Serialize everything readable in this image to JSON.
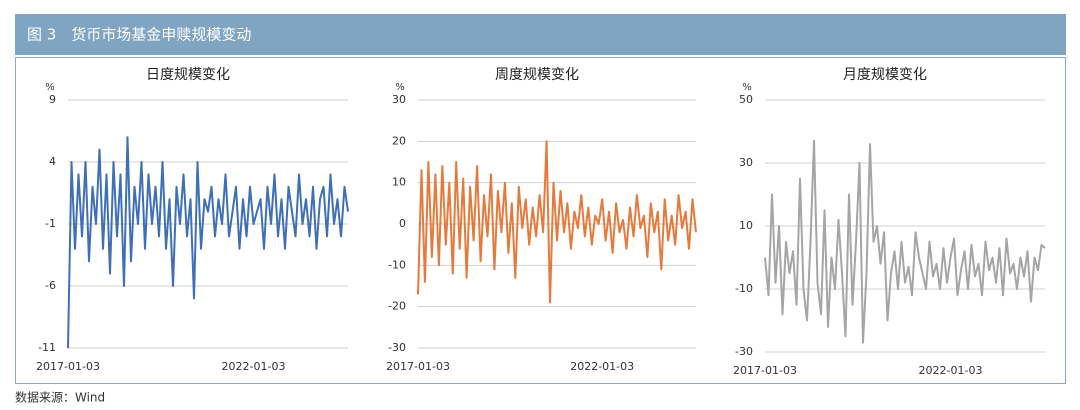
{
  "header": {
    "title": "图 3　货币市场基金申赎规模变动"
  },
  "footer": {
    "source": "数据来源：Wind"
  },
  "chart_data": [
    {
      "type": "line",
      "title": "日度规模变化",
      "unit": "%",
      "categories": [
        "2017-01-03",
        null,
        null,
        null,
        null,
        null,
        null,
        null,
        null,
        null,
        null,
        null,
        null,
        null,
        null,
        null,
        null,
        null,
        null,
        null,
        null,
        null,
        null,
        null,
        null,
        null,
        null,
        null,
        null,
        null,
        null,
        null,
        null,
        null,
        null,
        null,
        null,
        null,
        null,
        null,
        null,
        null,
        null,
        null,
        null,
        null,
        null,
        null,
        null,
        null,
        null,
        null,
        null,
        "2022-01-03",
        null,
        null,
        null,
        null,
        null,
        null,
        null,
        null,
        null,
        null,
        null,
        null,
        null,
        null,
        null,
        null,
        null,
        null,
        null,
        null,
        null,
        null,
        null,
        null,
        null,
        null,
        null
      ],
      "series": [
        {
          "name": "日度规模变化",
          "color": "#3f6fb6",
          "values": [
            -11,
            4,
            -3,
            3,
            -2,
            4,
            -4,
            2,
            -1,
            5,
            -3,
            3,
            -5,
            4,
            -2,
            3,
            -6,
            6,
            -4,
            2,
            -1,
            4,
            -3,
            3,
            -1,
            2,
            -2,
            4,
            -3,
            1,
            -6,
            2,
            -1,
            3,
            -2,
            1,
            -7,
            4,
            -3,
            1,
            0,
            2,
            -2,
            1,
            -1,
            3,
            -2,
            0,
            2,
            -3,
            1,
            -2,
            2,
            -1,
            0,
            1,
            -3,
            2,
            -1,
            3,
            -2,
            1,
            -3,
            2,
            0,
            -2,
            3,
            -1,
            1,
            -2,
            2,
            -3,
            1,
            2,
            -2,
            3,
            -1,
            1,
            -2,
            2,
            0
          ]
        }
      ],
      "ylim": [
        -11,
        9
      ],
      "yticks": [
        -11,
        -6,
        -1,
        4,
        9
      ],
      "grid": true
    },
    {
      "type": "line",
      "title": "周度规模变化",
      "unit": "%",
      "categories": [
        "2017-01-03",
        null,
        null,
        null,
        null,
        null,
        null,
        null,
        null,
        null,
        null,
        null,
        null,
        null,
        null,
        null,
        null,
        null,
        null,
        null,
        null,
        null,
        null,
        null,
        null,
        null,
        null,
        null,
        null,
        null,
        null,
        null,
        null,
        null,
        null,
        null,
        null,
        null,
        null,
        null,
        null,
        null,
        null,
        null,
        null,
        null,
        null,
        null,
        null,
        null,
        null,
        null,
        null,
        "2022-01-03",
        null,
        null,
        null,
        null,
        null,
        null,
        null,
        null,
        null,
        null,
        null,
        null,
        null,
        null,
        null,
        null,
        null,
        null,
        null,
        null,
        null,
        null,
        null,
        null,
        null,
        null,
        null
      ],
      "series": [
        {
          "name": "周度规模变化",
          "color": "#e67a3c",
          "values": [
            -17,
            13,
            -14,
            15,
            -8,
            12,
            -10,
            14,
            -5,
            10,
            -12,
            15,
            -6,
            11,
            -13,
            9,
            -4,
            14,
            -9,
            7,
            -3,
            12,
            -11,
            8,
            -2,
            10,
            -7,
            5,
            -13,
            9,
            -1,
            6,
            -5,
            4,
            -3,
            7,
            -2,
            20,
            -19,
            10,
            -4,
            8,
            -2,
            5,
            -6,
            3,
            -1,
            7,
            -3,
            4,
            -5,
            2,
            0,
            6,
            -4,
            3,
            -7,
            5,
            -2,
            1,
            -6,
            4,
            -3,
            7,
            -1,
            2,
            -8,
            5,
            -2,
            3,
            -11,
            6,
            -4,
            2,
            -5,
            7,
            -1,
            3,
            -6,
            6,
            -2
          ]
        }
      ],
      "ylim": [
        -30,
        30
      ],
      "yticks": [
        -30,
        -20,
        -10,
        0,
        10,
        20,
        30
      ],
      "grid": true
    },
    {
      "type": "line",
      "title": "月度规模变化",
      "unit": "%",
      "categories": [
        "2017-01-03",
        null,
        null,
        null,
        null,
        null,
        null,
        null,
        null,
        null,
        null,
        null,
        null,
        null,
        null,
        null,
        null,
        null,
        null,
        null,
        null,
        null,
        null,
        null,
        null,
        null,
        null,
        null,
        null,
        null,
        null,
        null,
        null,
        null,
        null,
        null,
        null,
        null,
        null,
        null,
        null,
        null,
        null,
        null,
        null,
        null,
        null,
        null,
        null,
        null,
        null,
        null,
        null,
        "2022-01-03",
        null,
        null,
        null,
        null,
        null,
        null,
        null,
        null,
        null,
        null,
        null,
        null,
        null,
        null,
        null,
        null,
        null,
        null,
        null,
        null,
        null,
        null,
        null,
        null,
        null,
        null,
        null
      ],
      "series": [
        {
          "name": "月度规模变化",
          "color": "#a5a5a5",
          "values": [
            0,
            -12,
            20,
            -8,
            10,
            -18,
            5,
            -5,
            2,
            -15,
            25,
            -10,
            -20,
            5,
            37,
            -8,
            -18,
            15,
            -22,
            0,
            -10,
            12,
            -5,
            -25,
            20,
            -15,
            5,
            30,
            -27,
            -5,
            36,
            5,
            10,
            -2,
            8,
            -20,
            -5,
            2,
            -10,
            5,
            -8,
            -3,
            -12,
            8,
            0,
            -5,
            -10,
            5,
            -6,
            -2,
            -10,
            3,
            -8,
            0,
            6,
            -12,
            -4,
            2,
            -10,
            4,
            -6,
            -2,
            -12,
            5,
            -4,
            0,
            -8,
            3,
            -12,
            6,
            -5,
            -2,
            -10,
            0,
            -6,
            2,
            -14,
            0,
            -4,
            4,
            3
          ]
        }
      ],
      "ylim": [
        -30,
        50
      ],
      "yticks": [
        -30,
        -10,
        10,
        30,
        50
      ],
      "grid": true
    }
  ]
}
